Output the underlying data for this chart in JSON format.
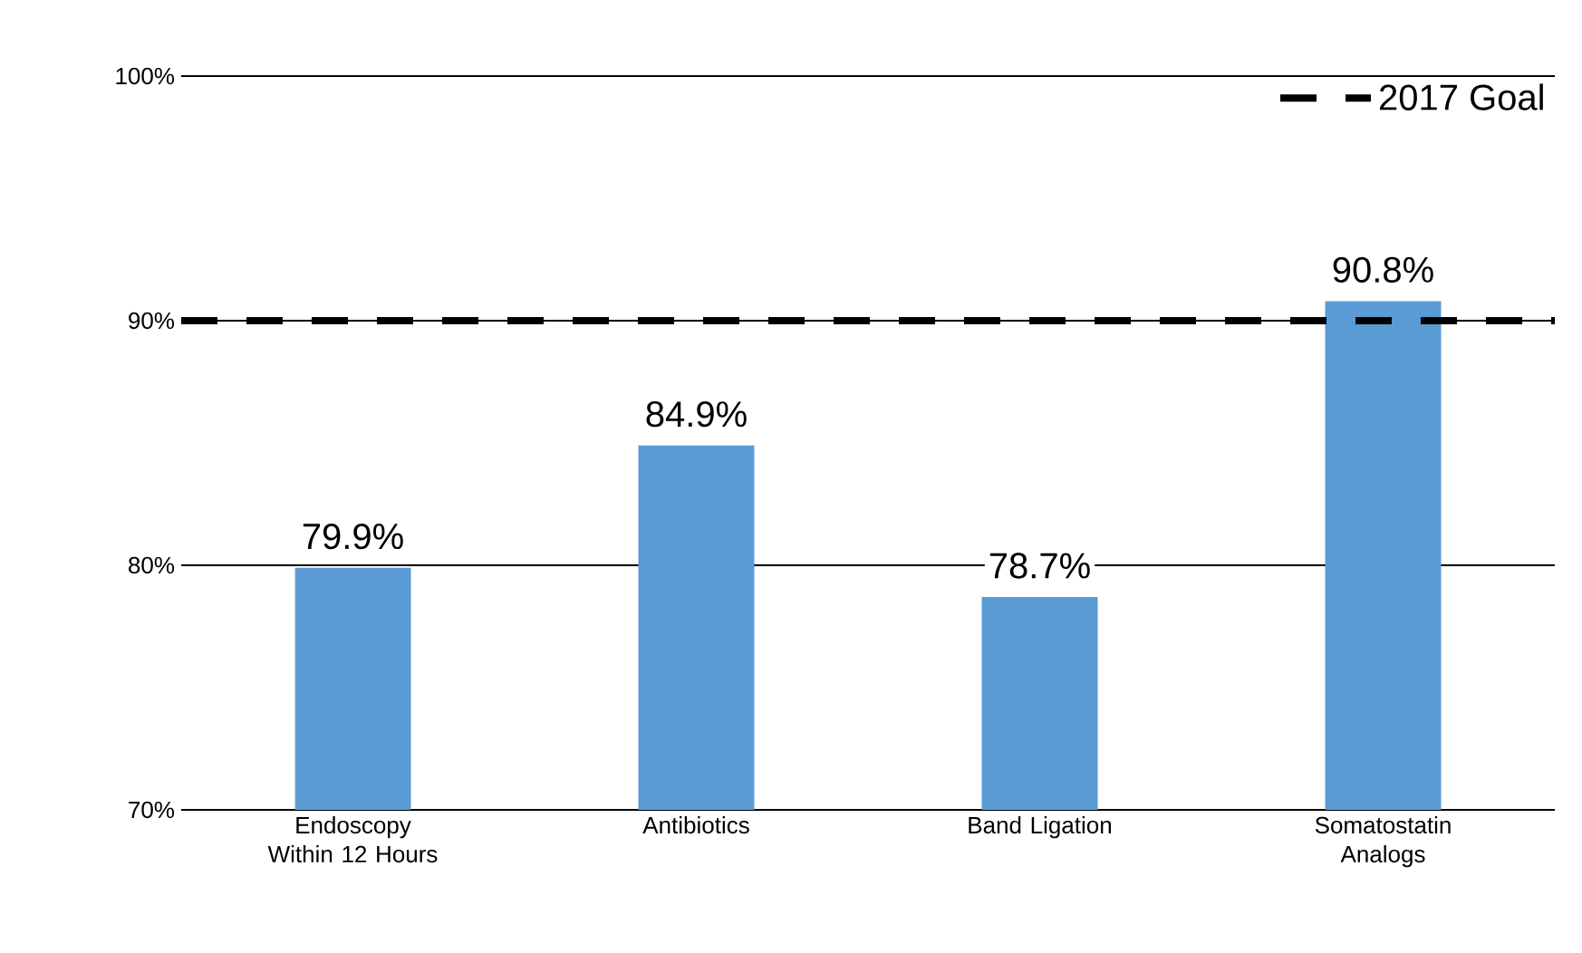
{
  "chart_data": {
    "type": "bar",
    "categories": [
      "Endoscopy Within 12 Hours",
      "Antibiotics",
      "Band Ligation",
      "Somatostatin Analogs"
    ],
    "values": [
      79.9,
      84.9,
      78.7,
      90.8
    ],
    "value_labels": [
      "79.9%",
      "84.9%",
      "78.7%",
      "90.8%"
    ],
    "color": "#5b9bd5",
    "ylim": [
      70,
      100
    ],
    "yticks": [
      {
        "value": 70,
        "label": "70%"
      },
      {
        "value": 80,
        "label": "80%"
      },
      {
        "value": 90,
        "label": "90%"
      },
      {
        "value": 100,
        "label": "100%"
      }
    ],
    "grid": "y",
    "legend": "top right",
    "ref_lines": [
      {
        "axis": "y",
        "value": 90,
        "label": "2017 Goal",
        "color": "#000000",
        "line_style": "dashed"
      }
    ]
  }
}
